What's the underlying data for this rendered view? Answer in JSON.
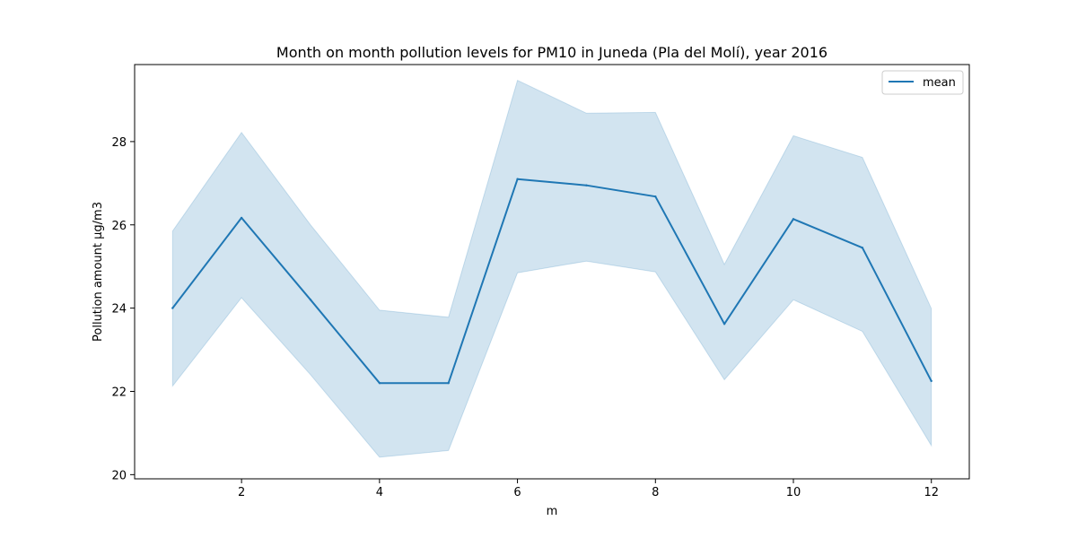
{
  "chart_data": {
    "type": "line",
    "title": "Month on month pollution levels for PM10 in Juneda (Pla del Molí), year 2016",
    "xlabel": "m",
    "ylabel": "Pollution amount µg/m3",
    "x": [
      1,
      2,
      3,
      4,
      5,
      6,
      7,
      8,
      9,
      10,
      11,
      12
    ],
    "xlim": [
      0.45,
      12.55
    ],
    "ylim": [
      19.9,
      29.85
    ],
    "xticks": [
      2,
      4,
      6,
      8,
      10,
      12
    ],
    "xtick_labels": [
      "2",
      "4",
      "6",
      "8",
      "10",
      "12"
    ],
    "yticks": [
      20,
      22,
      24,
      26,
      28
    ],
    "ytick_labels": [
      "20",
      "22",
      "24",
      "26",
      "28"
    ],
    "grid": false,
    "legend_position": "top-right",
    "series": [
      {
        "name": "mean",
        "color": "#1f77b4",
        "values": [
          24.0,
          26.17,
          24.2,
          22.2,
          22.2,
          27.1,
          26.95,
          26.68,
          23.62,
          26.14,
          25.45,
          22.25
        ],
        "ci_upper": [
          25.85,
          28.22,
          26.0,
          23.95,
          23.78,
          29.47,
          28.68,
          28.7,
          25.05,
          28.14,
          27.62,
          23.99
        ],
        "ci_lower": [
          22.13,
          24.25,
          22.4,
          20.42,
          20.58,
          24.85,
          25.13,
          24.87,
          22.28,
          24.2,
          23.44,
          20.7
        ],
        "band_color": "#1f77b4"
      }
    ]
  }
}
